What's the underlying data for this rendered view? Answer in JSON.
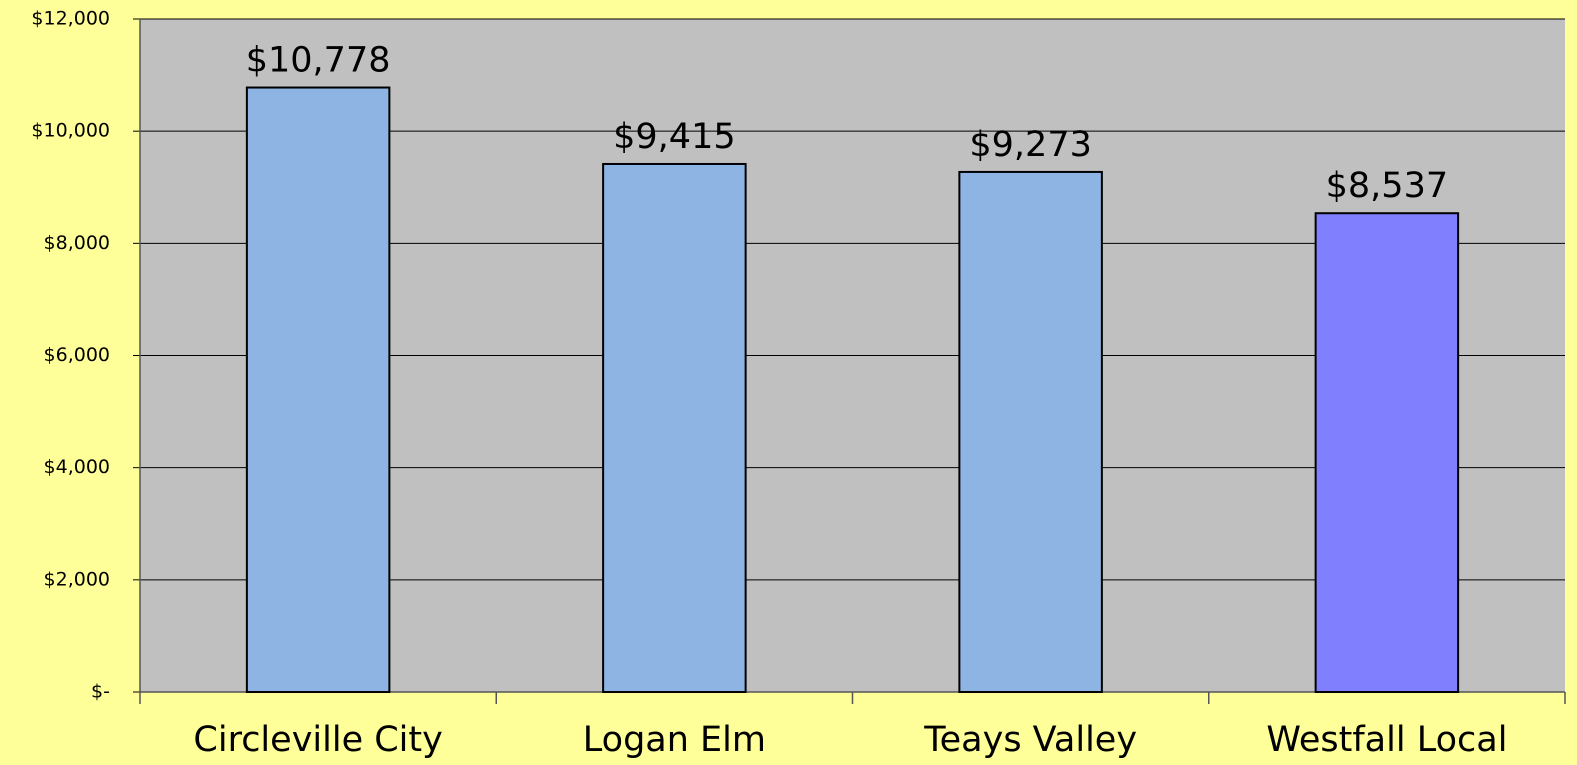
{
  "chart_data": {
    "type": "bar",
    "categories": [
      "Circleville City",
      "Logan Elm",
      "Teays Valley",
      "Westfall Local"
    ],
    "values": [
      10778,
      9415,
      9273,
      8537
    ],
    "value_labels": [
      "$10,778",
      "$9,415",
      "$9,273",
      "$8,537"
    ],
    "colors": [
      "#8eb4e3",
      "#8eb4e3",
      "#8eb4e3",
      "#8080ff"
    ],
    "ylim": [
      0,
      12000
    ],
    "yticks": [
      {
        "value": 0,
        "label": "$-"
      },
      {
        "value": 2000,
        "label": "$2,000"
      },
      {
        "value": 4000,
        "label": "$4,000"
      },
      {
        "value": 6000,
        "label": "$6,000"
      },
      {
        "value": 8000,
        "label": "$8,000"
      },
      {
        "value": 10000,
        "label": "$10,000"
      },
      {
        "value": 12000,
        "label": "$12,000"
      }
    ],
    "grid": true
  }
}
